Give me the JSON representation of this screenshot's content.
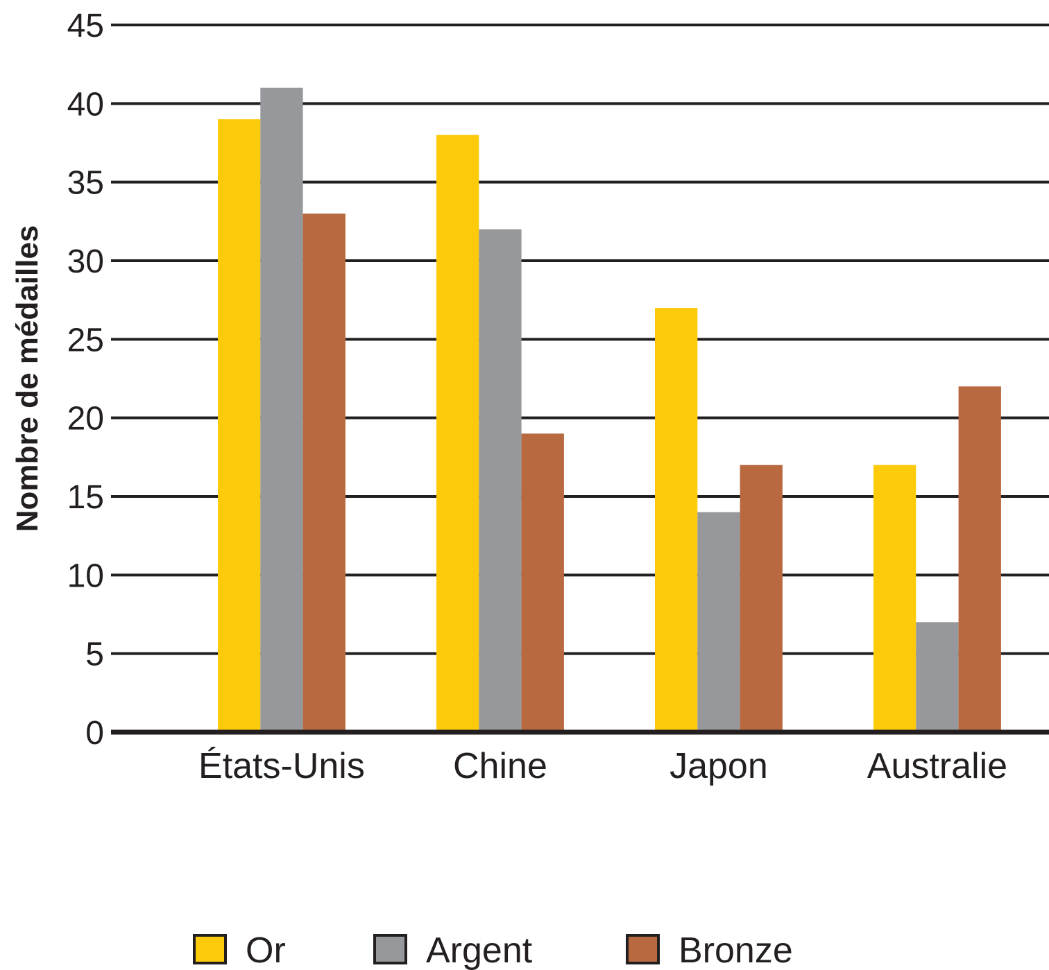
{
  "chart_data": {
    "type": "bar",
    "title": "",
    "ylabel": "Nombre de médailles",
    "xlabel": "",
    "ylim": [
      0,
      45
    ],
    "yticks": [
      0,
      5,
      10,
      15,
      20,
      25,
      30,
      35,
      40,
      45
    ],
    "grid": true,
    "legend_position": "bottom",
    "categories": [
      "États-Unis",
      "Chine",
      "Japon",
      "Australie"
    ],
    "series": [
      {
        "name": "Or",
        "color": "#fdca0c",
        "values": [
          39,
          38,
          27,
          17
        ]
      },
      {
        "name": "Argent",
        "color": "#97989b",
        "values": [
          41,
          32,
          14,
          7
        ]
      },
      {
        "name": "Bronze",
        "color": "#b8693f",
        "values": [
          33,
          19,
          17,
          22
        ]
      }
    ]
  }
}
